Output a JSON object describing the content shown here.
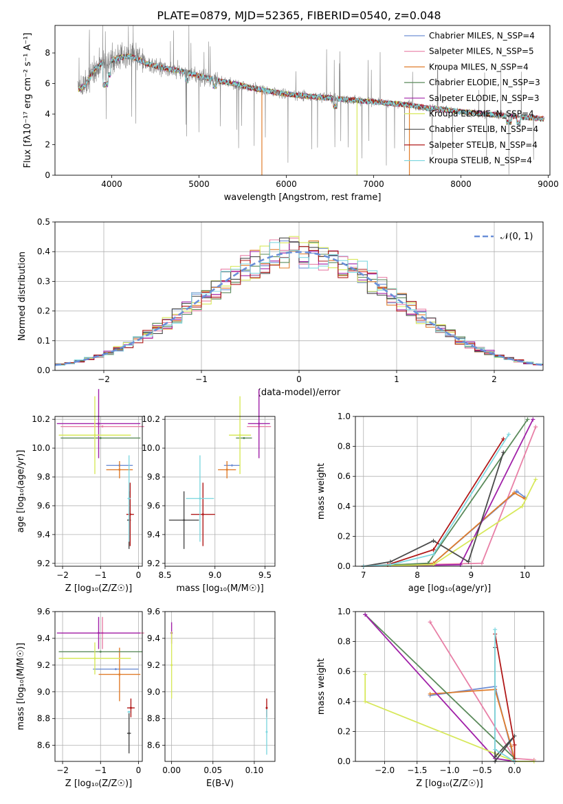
{
  "figure": {
    "title": "PLATE=0879, MJD=52365, FIBERID=0540, z=0.048"
  },
  "colors": {
    "c1": "#6f8fd4",
    "c2": "#e87fa6",
    "c3": "#e07c2a",
    "c4": "#5a8a5a",
    "c5": "#a020a8",
    "c6": "#d7e85a",
    "c7": "#4a4a4a",
    "c8": "#b01818",
    "c9": "#80d8e0",
    "data": "#808080"
  },
  "chart_data": [
    {
      "id": "spectrum",
      "type": "line",
      "xlabel": "wavelength [Angstrom, rest frame]",
      "ylabel": "Flux [f",
      "ylabel_full": "Flux [fλ10⁻¹⁷ erg cm⁻² s⁻¹ A⁻¹]",
      "xlim": [
        3350,
        9020
      ],
      "ylim": [
        0,
        9.8
      ],
      "xticks": [
        "4000",
        "5000",
        "6000",
        "7000",
        "8000",
        "9000"
      ],
      "yticks": [
        "0",
        "2",
        "4",
        "6",
        "8"
      ],
      "legend_position": "top-right",
      "legend": [
        "Chabrier MILES, N_SSP=4",
        "Salpeter MILES, N_SSP=5",
        "Kroupa MILES, N_SSP=4",
        "Chabrier ELODIE, N_SSP=3",
        "Salpeter ELODIE, N_SSP=3",
        "Kroupa ELODIE, N_SSP=4",
        "Chabrier STELIB, N_SSP=4",
        "Salpeter STELIB, N_SSP=4",
        "Kroupa STELIB, N_SSP=4"
      ],
      "model_continuum": {
        "x": [
          3620,
          3700,
          3800,
          3900,
          4000,
          4100,
          4200,
          4300,
          4400,
          4600,
          4800,
          5000,
          5200,
          5400,
          5600,
          5800,
          6000,
          6200,
          6400,
          6600,
          6800,
          7000,
          7200,
          7400,
          7600,
          7800,
          8000,
          8200,
          8400,
          8600,
          8800,
          8950
        ],
        "y": [
          5.6,
          5.9,
          6.9,
          7.4,
          7.5,
          7.7,
          7.8,
          7.6,
          7.3,
          7.0,
          6.8,
          6.5,
          6.2,
          6.0,
          5.7,
          5.5,
          5.3,
          5.2,
          5.1,
          5.0,
          4.9,
          4.8,
          4.7,
          4.6,
          4.4,
          4.3,
          4.15,
          4.05,
          3.95,
          3.85,
          3.75,
          3.7
        ]
      }
    },
    {
      "id": "residuals",
      "type": "bar",
      "xlabel": "(data-model)/error",
      "ylabel": "Normed distribution",
      "xlim": [
        -2.5,
        2.5
      ],
      "ylim": [
        0,
        0.5
      ],
      "xticks": [
        "−2",
        "−1",
        "0",
        "1",
        "2"
      ],
      "yticks": [
        "0.0",
        "0.1",
        "0.2",
        "0.3",
        "0.4",
        "0.5"
      ],
      "grid": true,
      "legend_position": "top-right",
      "legend": [
        "𝒩(0, 1)"
      ],
      "bin_width": 0.1,
      "normal_reference": {
        "mean": 0,
        "sigma": 1
      }
    },
    {
      "id": "age_vs_z",
      "type": "scatter",
      "xlabel": "Z [log₁₀(Z/Z☉)]",
      "ylabel": "age  [log₁₀(age/yr)]",
      "xlim": [
        -2.2,
        0.1
      ],
      "ylim": [
        9.18,
        10.22
      ],
      "xticks": [
        "−2",
        "−1",
        "0"
      ],
      "yticks": [
        "9.2",
        "9.4",
        "9.6",
        "9.8",
        "10.0",
        "10.2"
      ],
      "points": [
        {
          "c": "c1",
          "x": -0.5,
          "xerr": 0.35,
          "y": 9.88,
          "yerr": 0.0
        },
        {
          "c": "c2",
          "x": -0.95,
          "xerr": 1.1,
          "y": 10.15,
          "yerr": 0.0
        },
        {
          "c": "c3",
          "x": -0.5,
          "xerr": 0.35,
          "y": 9.85,
          "yerr": 0.06
        },
        {
          "c": "c4",
          "x": -1.0,
          "xerr": 1.05,
          "y": 10.07,
          "yerr": 0.0
        },
        {
          "c": "c5",
          "x": -1.05,
          "xerr": 1.1,
          "y": 10.17,
          "yerr": 0.24
        },
        {
          "c": "c6",
          "x": -1.15,
          "xerr": 0.95,
          "y": 10.09,
          "yerr": 0.27
        },
        {
          "c": "c7",
          "x": -0.25,
          "xerr": 0.05,
          "y": 9.5,
          "yerr": 0.2
        },
        {
          "c": "c8",
          "x": -0.22,
          "xerr": 0.1,
          "y": 9.54,
          "yerr": 0.22
        },
        {
          "c": "c9",
          "x": -0.25,
          "xerr": 0.04,
          "y": 9.65,
          "yerr": 0.3
        }
      ]
    },
    {
      "id": "age_vs_mass",
      "type": "scatter",
      "xlabel": "mass [log₁₀(M/M☉)]",
      "ylabel": "",
      "xlim": [
        8.5,
        9.6
      ],
      "ylim": [
        9.18,
        10.22
      ],
      "xticks": [
        "8.5",
        "9.0",
        "9.5"
      ],
      "yticks": [
        "9.2",
        "9.4",
        "9.6",
        "9.8",
        "10.0",
        "10.2"
      ],
      "points": [
        {
          "c": "c1",
          "x": 9.17,
          "xerr": 0.08,
          "y": 9.88,
          "yerr": 0.0
        },
        {
          "c": "c2",
          "x": 9.44,
          "xerr": 0.12,
          "y": 10.15,
          "yerr": 0.0
        },
        {
          "c": "c3",
          "x": 9.12,
          "xerr": 0.09,
          "y": 9.85,
          "yerr": 0.06
        },
        {
          "c": "c4",
          "x": 9.29,
          "xerr": 0.08,
          "y": 10.07,
          "yerr": 0.0
        },
        {
          "c": "c5",
          "x": 9.44,
          "xerr": 0.11,
          "y": 10.17,
          "yerr": 0.24
        },
        {
          "c": "c6",
          "x": 9.25,
          "xerr": 0.11,
          "y": 10.09,
          "yerr": 0.27
        },
        {
          "c": "c7",
          "x": 8.69,
          "xerr": 0.15,
          "y": 9.5,
          "yerr": 0.2
        },
        {
          "c": "c8",
          "x": 8.88,
          "xerr": 0.12,
          "y": 9.54,
          "yerr": 0.22
        },
        {
          "c": "c9",
          "x": 8.85,
          "xerr": 0.14,
          "y": 9.65,
          "yerr": 0.3
        }
      ]
    },
    {
      "id": "weight_vs_age",
      "type": "line",
      "xlabel": "age  [log₁₀(age/yr)]",
      "ylabel": "mass weight",
      "xlim": [
        6.85,
        10.35
      ],
      "ylim": [
        0,
        1.0
      ],
      "xticks": [
        "7",
        "8",
        "9",
        "10"
      ],
      "yticks": [
        "0.0",
        "0.2",
        "0.4",
        "0.6",
        "0.8",
        "1.0"
      ],
      "series": [
        {
          "c": "c1",
          "x": [
            7.0,
            8.3,
            9.85,
            10.0
          ],
          "y": [
            0.0,
            0.02,
            0.5,
            0.46
          ]
        },
        {
          "c": "c2",
          "x": [
            7.0,
            9.2,
            10.2
          ],
          "y": [
            0.0,
            0.02,
            0.93
          ]
        },
        {
          "c": "c3",
          "x": [
            7.0,
            8.3,
            9.8,
            10.0
          ],
          "y": [
            0.0,
            0.02,
            0.49,
            0.45
          ]
        },
        {
          "c": "c4",
          "x": [
            7.0,
            8.2,
            10.05
          ],
          "y": [
            0.0,
            0.02,
            0.98
          ]
        },
        {
          "c": "c5",
          "x": [
            7.0,
            8.8,
            10.15
          ],
          "y": [
            0.0,
            0.01,
            0.98
          ]
        },
        {
          "c": "c6",
          "x": [
            7.0,
            8.3,
            9.95,
            10.2
          ],
          "y": [
            0.0,
            0.01,
            0.4,
            0.58
          ]
        },
        {
          "c": "c7",
          "x": [
            7.0,
            7.5,
            8.3,
            8.95,
            9.6
          ],
          "y": [
            0.0,
            0.03,
            0.17,
            0.03,
            0.76
          ]
        },
        {
          "c": "c8",
          "x": [
            7.0,
            7.45,
            8.3,
            9.6
          ],
          "y": [
            0.0,
            0.01,
            0.11,
            0.85
          ]
        },
        {
          "c": "c9",
          "x": [
            7.0,
            7.5,
            8.3,
            9.7
          ],
          "y": [
            0.0,
            0.01,
            0.08,
            0.88
          ]
        }
      ]
    },
    {
      "id": "mass_vs_z",
      "type": "scatter",
      "xlabel": "Z [log₁₀(Z/Z☉)]",
      "ylabel": "mass [log₁₀(M/M☉)]",
      "xlim": [
        -2.2,
        0.1
      ],
      "ylim": [
        8.48,
        9.6
      ],
      "xticks": [
        "−2",
        "−1",
        "0"
      ],
      "yticks": [
        "8.6",
        "8.8",
        "9.0",
        "9.2",
        "9.4",
        "9.6"
      ],
      "points": [
        {
          "c": "c1",
          "x": -0.6,
          "xerr": 0.6,
          "y": 9.17,
          "yerr": 0.0
        },
        {
          "c": "c2",
          "x": -0.95,
          "xerr": 1.1,
          "y": 9.44,
          "yerr": 0.12
        },
        {
          "c": "c3",
          "x": -0.5,
          "xerr": 0.55,
          "y": 9.13,
          "yerr": 0.2
        },
        {
          "c": "c4",
          "x": -1.0,
          "xerr": 1.1,
          "y": 9.3,
          "yerr": 0.0
        },
        {
          "c": "c5",
          "x": -1.05,
          "xerr": 1.1,
          "y": 9.44,
          "yerr": 0.12
        },
        {
          "c": "c6",
          "x": -1.15,
          "xerr": 0.95,
          "y": 9.25,
          "yerr": 0.12
        },
        {
          "c": "c7",
          "x": -0.25,
          "xerr": 0.05,
          "y": 8.69,
          "yerr": 0.15
        },
        {
          "c": "c8",
          "x": -0.2,
          "xerr": 0.1,
          "y": 8.88,
          "yerr": 0.07
        },
        {
          "c": "c9",
          "x": -0.25,
          "xerr": 0.04,
          "y": 8.85,
          "yerr": 0.0
        }
      ]
    },
    {
      "id": "mass_vs_ebv",
      "type": "scatter",
      "xlabel": "E(B-V)",
      "ylabel": "",
      "xlim": [
        -0.008,
        0.125
      ],
      "ylim": [
        8.48,
        9.6
      ],
      "xticks": [
        "0.00",
        "0.05",
        "0.10"
      ],
      "yticks": [
        "8.6",
        "8.8",
        "9.0",
        "9.2",
        "9.4",
        "9.6"
      ],
      "points": [
        {
          "c": "c5",
          "x": 0.0,
          "xerr": 0.0,
          "y": 9.44,
          "yerr": 0.08
        },
        {
          "c": "c6",
          "x": 0.0,
          "xerr": 0.0,
          "y": 9.2,
          "yerr": 0.25
        },
        {
          "c": "c8",
          "x": 0.115,
          "xerr": 0.0,
          "y": 8.88,
          "yerr": 0.07
        },
        {
          "c": "c9",
          "x": 0.115,
          "xerr": 0.0,
          "y": 8.7,
          "yerr": 0.17
        }
      ]
    },
    {
      "id": "weight_vs_z",
      "type": "line",
      "xlabel": "Z [log₁₀(Z/Z☉)]",
      "ylabel": "mass weight",
      "xlim": [
        -2.45,
        0.45
      ],
      "ylim": [
        0,
        1.0
      ],
      "xticks": [
        "−2.0",
        "−1.5",
        "−1.0",
        "−0.5",
        "0.0"
      ],
      "yticks": [
        "0.0",
        "0.2",
        "0.4",
        "0.6",
        "0.8",
        "1.0"
      ],
      "series": [
        {
          "c": "c1",
          "x": [
            -1.3,
            -0.3,
            0.0
          ],
          "y": [
            0.44,
            0.5,
            0.0
          ]
        },
        {
          "c": "c2",
          "x": [
            -1.3,
            0.0,
            0.3
          ],
          "y": [
            0.93,
            0.02,
            0.01
          ]
        },
        {
          "c": "c3",
          "x": [
            -1.3,
            -0.3,
            -0.05,
            0.0
          ],
          "y": [
            0.45,
            0.48,
            0.1,
            0.0
          ]
        },
        {
          "c": "c4",
          "x": [
            -2.3,
            0.0,
            0.0
          ],
          "y": [
            0.98,
            0.02,
            0.0
          ]
        },
        {
          "c": "c5",
          "x": [
            -2.3,
            -0.3,
            0.0
          ],
          "y": [
            0.98,
            0.02,
            0.0
          ]
        },
        {
          "c": "c6",
          "x": [
            -2.3,
            -2.3,
            0.0,
            0.3
          ],
          "y": [
            0.58,
            0.4,
            0.0,
            0.0
          ]
        },
        {
          "c": "c7",
          "x": [
            -0.3,
            -0.3,
            0.0,
            -0.3
          ],
          "y": [
            0.76,
            0.03,
            0.17,
            0.0
          ]
        },
        {
          "c": "c8",
          "x": [
            -0.3,
            0.0,
            0.0
          ],
          "y": [
            0.85,
            0.11,
            0.0
          ]
        },
        {
          "c": "c9",
          "x": [
            -0.3,
            -0.3,
            0.0
          ],
          "y": [
            0.88,
            0.08,
            0.0
          ]
        }
      ]
    }
  ]
}
